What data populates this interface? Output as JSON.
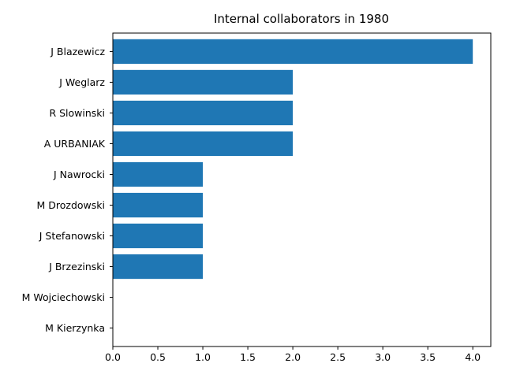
{
  "chart_data": {
    "type": "bar",
    "orientation": "horizontal",
    "title": "Internal collaborators in 1980",
    "xlabel": "",
    "ylabel": "",
    "categories": [
      "J Blazewicz",
      "J Weglarz",
      "R Slowinski",
      "A URBANIAK",
      "J Nawrocki",
      "M Drozdowski",
      "J Stefanowski",
      "J Brzezinski",
      "M Wojciechowski",
      "M Kierzynka"
    ],
    "values": [
      4,
      2,
      2,
      2,
      1,
      1,
      1,
      1,
      0,
      0
    ],
    "xlim": [
      0,
      4.2
    ],
    "xticks": [
      "0.0",
      "0.5",
      "1.0",
      "1.5",
      "2.0",
      "2.5",
      "3.0",
      "3.5",
      "4.0"
    ],
    "grid": false,
    "legend": "none",
    "bar_color": "#1f77b4"
  }
}
